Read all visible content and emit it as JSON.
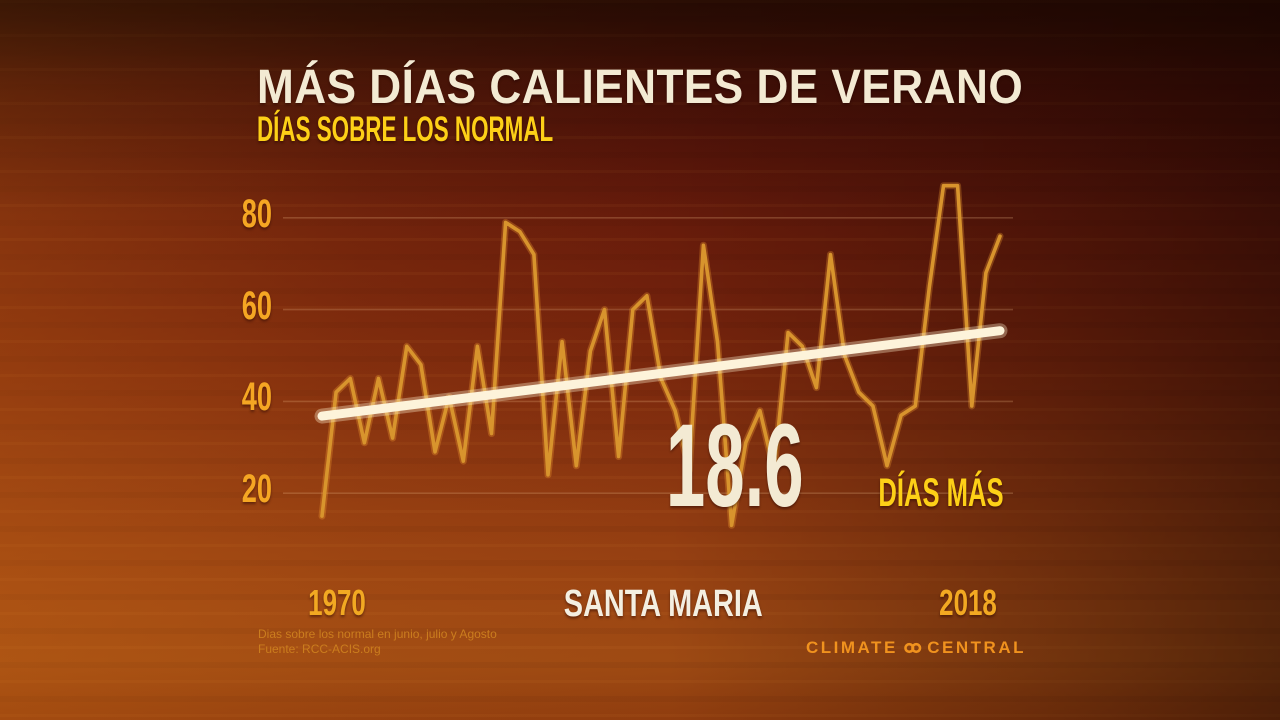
{
  "title": "MÁS DÍAS CALIENTES DE VERANO",
  "subtitle": "DÍAS SOBRE LOS NORMAL",
  "station_label": "SANTA MARIA",
  "annotation": {
    "value": "18.6",
    "label": "DÍAS MÁS"
  },
  "footnote": {
    "line1": "Dias sobre los normal en junio, julio y Agosto",
    "line2": "Fuente: RCC-ACIS.org"
  },
  "logo": {
    "left_word": "CLIMATE",
    "right_word": "CENTRAL",
    "mark": "interlocking-rings-icon"
  },
  "colors": {
    "title": "#f3ead3",
    "subtitle": "#fdd017",
    "axis_labels": "#f5a623",
    "data_line": "#d8942d",
    "trend_line": "#fdf3da",
    "gridline": "rgba(255,205,150,0.22)",
    "annotation_value": "#f3ead3",
    "annotation_label": "#fdd017",
    "footnote": "#cb7d1e",
    "logo": "#f0921e"
  },
  "chart_data": {
    "type": "line",
    "title": "Más días calientes de verano — días sobre los normal",
    "x_label_left": "1970",
    "x_label_right": "2018",
    "x": [
      1970,
      1971,
      1972,
      1973,
      1974,
      1975,
      1976,
      1977,
      1978,
      1979,
      1980,
      1981,
      1982,
      1983,
      1984,
      1985,
      1986,
      1987,
      1988,
      1989,
      1990,
      1991,
      1992,
      1993,
      1994,
      1995,
      1996,
      1997,
      1998,
      1999,
      2000,
      2001,
      2002,
      2003,
      2004,
      2005,
      2006,
      2007,
      2008,
      2009,
      2010,
      2011,
      2012,
      2013,
      2014,
      2015,
      2016,
      2017,
      2018
    ],
    "series": [
      {
        "name": "Días sobre lo normal (junio-agosto)",
        "values": [
          15,
          42,
          45,
          31,
          45,
          32,
          52,
          48,
          29,
          41,
          27,
          52,
          33,
          79,
          77,
          72,
          24,
          53,
          26,
          51,
          60,
          28,
          60,
          63,
          45,
          38,
          25,
          74,
          53,
          13,
          31,
          38,
          25,
          55,
          52,
          43,
          72,
          50,
          42,
          39,
          26,
          37,
          39,
          65,
          87,
          87,
          39,
          68,
          76
        ]
      }
    ],
    "trend": {
      "start_value": 36.8,
      "end_value": 55.4,
      "increase_label": "18.6"
    },
    "yticks": [
      20,
      40,
      60,
      80
    ],
    "ylim": [
      0,
      90
    ],
    "grid": true,
    "legend": "none"
  }
}
